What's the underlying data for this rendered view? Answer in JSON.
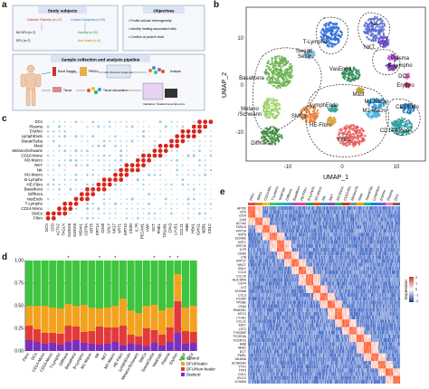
{
  "panel_labels": {
    "a": "a",
    "b": "b",
    "c": "c",
    "d": "d",
    "e": "e"
  },
  "panel_a": {
    "study_subjects": "Study subjects",
    "objectives": "Objectives",
    "diabetic": "Diabetic Patients (n=17)",
    "control": "Control Subjects (n=19)",
    "diabetic_sub1": "NH DFU (n=7)",
    "diabetic_sub2": "DFU (n=7)",
    "control_sub1": "Healthy (n=10)",
    "control_sub2": "Non-healer (n=9)",
    "obj1": "• Profile cellular heterogeneity",
    "obj2": "• Identify healing associated cells",
    "obj3": "• Confirm at protein level",
    "workflow_title": "Sample collection and analysis pipeline",
    "wf1": "Blood Sample",
    "wf2": "PBMCs",
    "wf3": "10x Chromium Single cell",
    "wf4": "Analysis",
    "wf5": "Tissue",
    "wf6": "Tissue dissociation",
    "wf7": "Validation: Spatial transcriptomics"
  },
  "panel_b": {
    "xlabel": "UMAP_1",
    "ylabel": "UMAP_2",
    "ticks_x": [
      "-10",
      "0",
      "10"
    ],
    "ticks_y": [
      "10",
      "0",
      "-10"
    ],
    "clusters": [
      {
        "name": "NK",
        "color": "#5b6fd0"
      },
      {
        "name": "T-Lympho",
        "color": "#2f6bd6"
      },
      {
        "name": "NKT",
        "color": "#6a4bc9"
      },
      {
        "name": "Sweat/ Seba",
        "color": "#7fb8d8"
      },
      {
        "name": "Plasma",
        "color": "#b05bc6"
      },
      {
        "name": "B-Lympho",
        "color": "#7e3fb2"
      },
      {
        "name": "DCs",
        "color": "#e07ab8"
      },
      {
        "name": "Erythro",
        "color": "#c93f7a"
      },
      {
        "name": "BasalKera",
        "color": "#6ab04c"
      },
      {
        "name": "VasEndo",
        "color": "#2e8b57"
      },
      {
        "name": "Mast",
        "color": "#c2a13a"
      },
      {
        "name": "Melano /Schwann",
        "color": "#9bd068"
      },
      {
        "name": "LymphEndo",
        "color": "#3aa0a0"
      },
      {
        "name": "M1-Macro",
        "color": "#3c9ad0"
      },
      {
        "name": "M2-Macro",
        "color": "#4fb6e0"
      },
      {
        "name": "CD16-Mo",
        "color": "#2a7fbf"
      },
      {
        "name": "SMCs",
        "color": "#e8823a"
      },
      {
        "name": "HE-Fibro",
        "color": "#d9a441"
      },
      {
        "name": "Fibro",
        "color": "#e65a5a"
      },
      {
        "name": "DiffKera",
        "color": "#3f8f3f"
      },
      {
        "name": "CD14-Mono",
        "color": "#2b9b9b"
      }
    ]
  },
  "chart_data": [
    {
      "type": "scatter",
      "panel": "c",
      "title": "",
      "rows": [
        "DCs",
        "Plasma",
        "Erythro",
        "LymphEndo",
        "Sweat/Seba",
        "Mast",
        "Melano/Schwann",
        "CD16-Mono",
        "M2-Macro",
        "NKT",
        "NK",
        "M1-Macro",
        "B-Lympho",
        "HE-Fibro",
        "BasalKera",
        "DiffKera",
        "VasEndo",
        "T-Lympho",
        "CD14-Mono",
        "SMCs",
        "Fibro"
      ],
      "cols": [
        "DCN",
        "CFD",
        "ACTA2",
        "TAGLN",
        "S100A8",
        "S100A9",
        "MS4A1",
        "CD79A",
        "KRT5",
        "KRT14",
        "CD68",
        "GNLY",
        "NKG7",
        "KRT1",
        "KRT10",
        "CD3D",
        "IL7R",
        "PECAM1",
        "VWF",
        "DCT",
        "PMEL",
        "TPSAB1",
        "CPA3",
        "LYVE1",
        "CCL21",
        "HBB",
        "HBA1",
        "IGHG1",
        "MZB1",
        "CD1C"
      ]
    },
    {
      "type": "bar",
      "panel": "d",
      "title": "",
      "categories": [
        "Fibro",
        "DCs",
        "CD14-Mono",
        "CD16-Mono",
        "T-Lympho",
        "DiffKera",
        "BasalKera",
        "B-Lympho",
        "M1-Macro",
        "NK",
        "NKT",
        "M2-Macro",
        "HE-Fibro",
        "LymphEndo",
        "Melano/Schwann",
        "SMCs",
        "Sweat/Seba",
        "VasEndo",
        "Plasma",
        "Erythro",
        "Mast",
        "DCs"
      ],
      "ylim": [
        0,
        1
      ],
      "ticks": [
        "0.00",
        "0.25",
        "0.50",
        "0.75",
        "1.00"
      ],
      "series": [
        {
          "name": "Diabetic",
          "color": "#7b2fbf",
          "values": [
            0.12,
            0.1,
            0.08,
            0.09,
            0.07,
            0.1,
            0.12,
            0.09,
            0.08,
            0.07,
            0.08,
            0.1,
            0.06,
            0.08,
            0.07,
            0.05,
            0.09,
            0.06,
            0.1,
            0.2,
            0.08,
            0.09
          ]
        },
        {
          "name": "DFU/Non-healer",
          "color": "#e23a3a",
          "values": [
            0.16,
            0.14,
            0.12,
            0.11,
            0.12,
            0.18,
            0.15,
            0.12,
            0.14,
            0.2,
            0.18,
            0.16,
            0.22,
            0.1,
            0.09,
            0.2,
            0.14,
            0.12,
            0.16,
            0.35,
            0.14,
            0.12
          ]
        },
        {
          "name": "DFU/Healer",
          "color": "#f2a21f",
          "values": [
            0.22,
            0.26,
            0.3,
            0.28,
            0.28,
            0.24,
            0.23,
            0.3,
            0.26,
            0.2,
            0.22,
            0.24,
            0.3,
            0.27,
            0.26,
            0.25,
            0.28,
            0.27,
            0.22,
            0.3,
            0.26,
            0.29
          ]
        },
        {
          "name": "Control",
          "color": "#3ec43e",
          "values": [
            0.5,
            0.5,
            0.5,
            0.52,
            0.53,
            0.48,
            0.5,
            0.49,
            0.52,
            0.53,
            0.52,
            0.5,
            0.42,
            0.55,
            0.58,
            0.5,
            0.49,
            0.55,
            0.52,
            0.15,
            0.52,
            0.5
          ]
        }
      ],
      "markers": [
        "*",
        "*",
        "*",
        "*",
        "*",
        "*"
      ]
    },
    {
      "type": "heatmap",
      "panel": "e",
      "title": "",
      "genes": [
        "APOD",
        "CFD",
        "DCN",
        "LUM",
        "ACTA2",
        "TAGLN",
        "KRT14",
        "KRT5",
        "S100A2",
        "KRT1",
        "KRT10",
        "IL7R",
        "CD3D",
        "LTB",
        "KRT17",
        "NKG7",
        "GNLY",
        "CCL5",
        "CCL20",
        "HLA-DRA",
        "CD74",
        "LYZ",
        "S100A8",
        "CCL3",
        "PLVAP",
        "TPSB2",
        "CPA3",
        "RNASE1",
        "MT1X",
        "LYVE1",
        "CCL21",
        "IGKC",
        "LST1",
        "TYROBP",
        "FCGR3A",
        "FCER1G",
        "HBB",
        "HBA1",
        "DCT",
        "PMEL",
        "MLANA",
        "SCGB2A2",
        "TTF1",
        "TFF3",
        "COL1",
        "IGLC2",
        "JCHAIN"
      ],
      "top_labels": [
        "Fibro",
        "SMCs",
        "CD14-Mono",
        "T-Lympho",
        "VasEndo",
        "DiffKera",
        "BasalKera",
        "HE-Fibro",
        "B-Lympho",
        "M1-Macro",
        "NK",
        "NKT",
        "M2-Macro",
        "CD16-Mono",
        "Melano/Schwann",
        "Mast",
        "Sweat/Seba",
        "LymphEndo",
        "Erythro",
        "Plasma",
        "DCs"
      ],
      "legend_title": "Expression",
      "legend_ticks": [
        "2",
        "1",
        "0",
        "-1",
        "-2"
      ]
    }
  ]
}
